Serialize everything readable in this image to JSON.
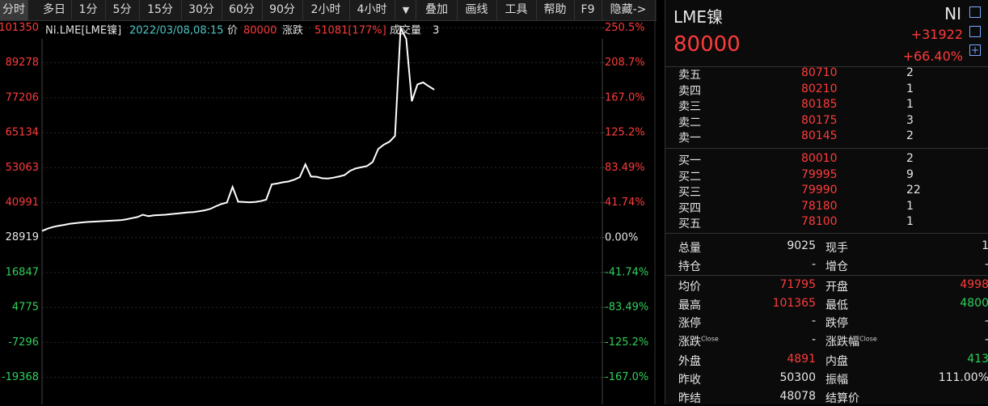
{
  "toolbar": [
    "分时",
    "多日",
    "1分",
    "5分",
    "15分",
    "30分",
    "60分",
    "90分",
    "2小时",
    "4小时",
    "叠加",
    "画线",
    "工具",
    "帮助",
    "F9",
    "隐藏->"
  ],
  "info_bar": {
    "symbol": "NI.LME[LME镍]",
    "datetime": "2022/03/08,08:15",
    "price_label": "价",
    "price": "80000",
    "change_label": "涨跌",
    "change": "51081[177%]",
    "volume_label": "成交量",
    "volume": "3"
  },
  "chart_data": {
    "type": "line",
    "series": [
      {
        "color": "#ffffff",
        "values": [
          31200,
          32000,
          32600,
          33000,
          33300,
          33700,
          33900,
          34100,
          34300,
          34400,
          34500,
          34600,
          34700,
          34800,
          34900,
          35200,
          35600,
          36000,
          36800,
          36300,
          36600,
          36700,
          36800,
          37000,
          37200,
          37400,
          37600,
          37700,
          38000,
          38300,
          38800,
          39700,
          40500,
          41000,
          46400,
          41300,
          41200,
          41100,
          41200,
          41500,
          42000,
          47300,
          47600,
          48000,
          48300,
          48900,
          49800,
          54200,
          50000,
          49900,
          49400,
          49300,
          49600,
          50000,
          50500,
          52000,
          52800,
          53200,
          53600,
          55000,
          59500,
          61000,
          62000,
          64000,
          101350,
          97500,
          76000,
          81800,
          82500,
          81200,
          80000,
          null,
          null,
          null,
          null,
          null,
          null,
          null,
          null,
          null,
          null,
          null,
          null,
          null,
          null,
          null,
          null,
          null,
          null,
          null,
          null,
          null,
          null,
          null,
          null,
          null,
          null,
          null,
          null,
          null
        ]
      }
    ],
    "ylim": [
      -28700,
      103700
    ],
    "yticks": [
      101350,
      89278,
      77206,
      65134,
      53063,
      40991,
      28919,
      16847,
      4775,
      -7296,
      -19368
    ],
    "y2lim": [
      -199.2,
      258.6
    ],
    "y2ticks": [
      {
        "value": 250.5,
        "label": "250.5%"
      },
      {
        "value": 208.7,
        "label": "208.7%"
      },
      {
        "value": 167.0,
        "label": "167.0%"
      },
      {
        "value": 125.2,
        "label": "125.2%"
      },
      {
        "value": 83.49,
        "label": "83.49%"
      },
      {
        "value": 41.74,
        "label": "41.74%"
      },
      {
        "value": 0,
        "label": "0.00%"
      },
      {
        "value": -41.74,
        "label": "-41.74%"
      },
      {
        "value": -83.49,
        "label": "-83.49%"
      },
      {
        "value": -125.2,
        "label": "-125.2%"
      },
      {
        "value": -167.0,
        "label": "-167.0%"
      }
    ],
    "grid": true
  },
  "quote": {
    "name": "LME镍",
    "code": "NI",
    "price": "80000",
    "change": "+31922",
    "change_pct": "+66.40%"
  },
  "asks": [
    {
      "label": "卖五",
      "price": "80710",
      "volume": "2"
    },
    {
      "label": "卖四",
      "price": "80210",
      "volume": "1"
    },
    {
      "label": "卖三",
      "price": "80185",
      "volume": "1"
    },
    {
      "label": "卖二",
      "price": "80175",
      "volume": "3"
    },
    {
      "label": "卖一",
      "price": "80145",
      "volume": "2"
    }
  ],
  "bids": [
    {
      "label": "买一",
      "price": "80010",
      "volume": "2"
    },
    {
      "label": "买二",
      "price": "79995",
      "volume": "9"
    },
    {
      "label": "买三",
      "price": "79990",
      "volume": "22"
    },
    {
      "label": "买四",
      "price": "78180",
      "volume": "1"
    },
    {
      "label": "买五",
      "price": "78100",
      "volume": "1"
    }
  ],
  "stats": [
    [
      {
        "label": "总量",
        "value": "9025",
        "color": "#e6e6e6"
      },
      {
        "label": "现手",
        "value": "1",
        "color": "#e6e6e6"
      }
    ],
    [
      {
        "label": "持仓",
        "value": "-",
        "color": "#e6e6e6"
      },
      {
        "label": "增仓",
        "value": "-",
        "color": "#e6e6e6"
      }
    ],
    [
      {
        "label": "均价",
        "value": "71795",
        "color": "#ff3b3b"
      },
      {
        "label": "开盘",
        "value": "4998",
        "color": "#ff3b3b"
      }
    ],
    [
      {
        "label": "最高",
        "value": "101365",
        "color": "#ff3b3b"
      },
      {
        "label": "最低",
        "value": "4800",
        "color": "#2fd05a"
      }
    ],
    [
      {
        "label": "涨停",
        "value": "-",
        "color": "#e6e6e6"
      },
      {
        "label": "跌停",
        "value": "-",
        "color": "#e6e6e6"
      }
    ],
    [
      {
        "label": "涨跌",
        "note": "Close",
        "value": "-",
        "color": "#e6e6e6"
      },
      {
        "label": "涨跌幅",
        "note": "Close",
        "value": "-",
        "color": "#e6e6e6"
      }
    ],
    [
      {
        "label": "外盘",
        "value": "4891",
        "color": "#ff3b3b"
      },
      {
        "label": "内盘",
        "value": "413",
        "color": "#2fd05a"
      }
    ],
    [
      {
        "label": "昨收",
        "value": "50300",
        "color": "#e6e6e6"
      },
      {
        "label": "振幅",
        "value": "111.00%",
        "color": "#e6e6e6"
      }
    ],
    [
      {
        "label": "昨结",
        "value": "48078",
        "color": "#e6e6e6"
      },
      {
        "label": "结算价",
        "value": "",
        "color": "#e6e6e6"
      }
    ]
  ]
}
